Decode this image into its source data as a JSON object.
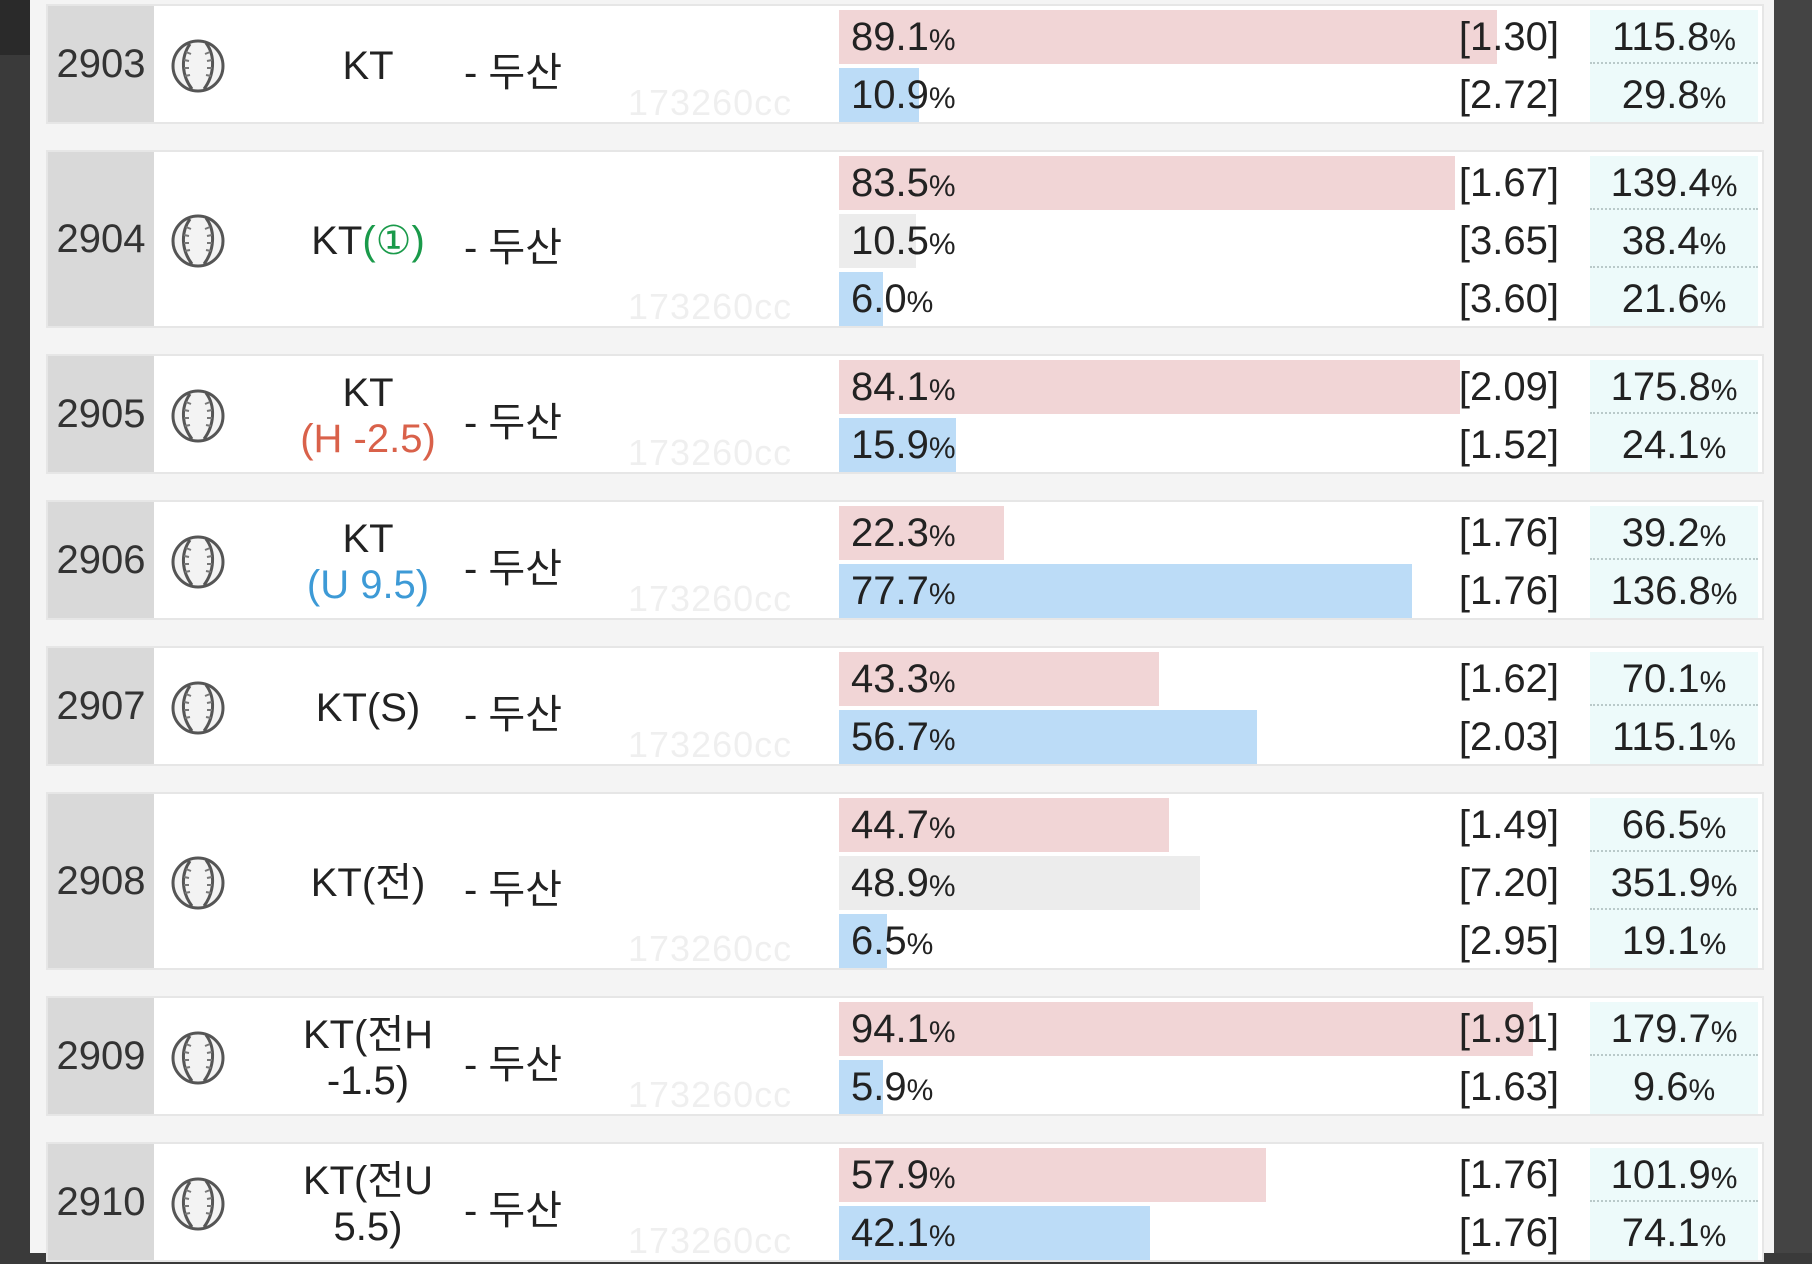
{
  "watermark": "173260cc",
  "rows": [
    {
      "no": "2903",
      "team": "KT",
      "team_sub": "",
      "sub_color": "",
      "away": "- 두산",
      "lines": [
        {
          "pct": "89.1",
          "unit": "%",
          "odd": "[1.30]",
          "bar": "red",
          "fill": 0.891,
          "roi": "115.8",
          "roi_unit": "%"
        },
        {
          "pct": "10.9",
          "unit": "%",
          "odd": "[2.72]",
          "bar": "blue",
          "fill": 0.109,
          "roi": "29.8",
          "roi_unit": "%"
        }
      ]
    },
    {
      "no": "2904",
      "team": "KT(①)",
      "team_sub": "",
      "sub_color": "",
      "away": "- 두산",
      "lines": [
        {
          "pct": "83.5",
          "unit": "%",
          "odd": "[1.67]",
          "bar": "red",
          "fill": 0.835,
          "roi": "139.4",
          "roi_unit": "%"
        },
        {
          "pct": "10.5",
          "unit": "%",
          "odd": "[3.65]",
          "bar": "gray",
          "fill": 0.105,
          "roi": "38.4",
          "roi_unit": "%"
        },
        {
          "pct": "6.0",
          "unit": "%",
          "odd": "[3.60]",
          "bar": "blue",
          "fill": 0.06,
          "roi": "21.6",
          "roi_unit": "%"
        }
      ]
    },
    {
      "no": "2905",
      "team": "KT",
      "team_sub": "(H -2.5)",
      "sub_color": "red",
      "away": "- 두산",
      "lines": [
        {
          "pct": "84.1",
          "unit": "%",
          "odd": "[2.09]",
          "bar": "red",
          "fill": 0.841,
          "roi": "175.8",
          "roi_unit": "%"
        },
        {
          "pct": "15.9",
          "unit": "%",
          "odd": "[1.52]",
          "bar": "blue",
          "fill": 0.159,
          "roi": "24.1",
          "roi_unit": "%"
        }
      ]
    },
    {
      "no": "2906",
      "team": "KT",
      "team_sub": "(U 9.5)",
      "sub_color": "blue",
      "away": "- 두산",
      "lines": [
        {
          "pct": "22.3",
          "unit": "%",
          "odd": "[1.76]",
          "bar": "red",
          "fill": 0.223,
          "roi": "39.2",
          "roi_unit": "%"
        },
        {
          "pct": "77.7",
          "unit": "%",
          "odd": "[1.76]",
          "bar": "blue",
          "fill": 0.777,
          "roi": "136.8",
          "roi_unit": "%"
        }
      ]
    },
    {
      "no": "2907",
      "team": "KT(S)",
      "team_sub": "",
      "sub_color": "",
      "away": "- 두산",
      "lines": [
        {
          "pct": "43.3",
          "unit": "%",
          "odd": "[1.62]",
          "bar": "red",
          "fill": 0.433,
          "roi": "70.1",
          "roi_unit": "%"
        },
        {
          "pct": "56.7",
          "unit": "%",
          "odd": "[2.03]",
          "bar": "blue",
          "fill": 0.567,
          "roi": "115.1",
          "roi_unit": "%"
        }
      ]
    },
    {
      "no": "2908",
      "team": "KT(전)",
      "team_sub": "",
      "sub_color": "",
      "away": "- 두산",
      "lines": [
        {
          "pct": "44.7",
          "unit": "%",
          "odd": "[1.49]",
          "bar": "red",
          "fill": 0.447,
          "roi": "66.5",
          "roi_unit": "%"
        },
        {
          "pct": "48.9",
          "unit": "%",
          "odd": "[7.20]",
          "bar": "gray",
          "fill": 0.489,
          "roi": "351.9",
          "roi_unit": "%"
        },
        {
          "pct": "6.5",
          "unit": "%",
          "odd": "[2.95]",
          "bar": "blue",
          "fill": 0.065,
          "roi": "19.1",
          "roi_unit": "%"
        }
      ]
    },
    {
      "no": "2909",
      "team": "KT(전H",
      "team_sub": "-1.5)",
      "sub_color": "",
      "away": "- 두산",
      "lines": [
        {
          "pct": "94.1",
          "unit": "%",
          "odd": "[1.91]",
          "bar": "red",
          "fill": 0.941,
          "roi": "179.7",
          "roi_unit": "%"
        },
        {
          "pct": "5.9",
          "unit": "%",
          "odd": "[1.63]",
          "bar": "blue",
          "fill": 0.059,
          "roi": "9.6",
          "roi_unit": "%"
        }
      ]
    },
    {
      "no": "2910",
      "team": "KT(전U",
      "team_sub": "5.5)",
      "sub_color": "",
      "away": "- 두산",
      "lines": [
        {
          "pct": "57.9",
          "unit": "%",
          "odd": "[1.76]",
          "bar": "red",
          "fill": 0.579,
          "roi": "101.9",
          "roi_unit": "%"
        },
        {
          "pct": "42.1",
          "unit": "%",
          "odd": "[1.76]",
          "bar": "blue",
          "fill": 0.421,
          "roi": "74.1",
          "roi_unit": "%"
        }
      ]
    }
  ]
}
